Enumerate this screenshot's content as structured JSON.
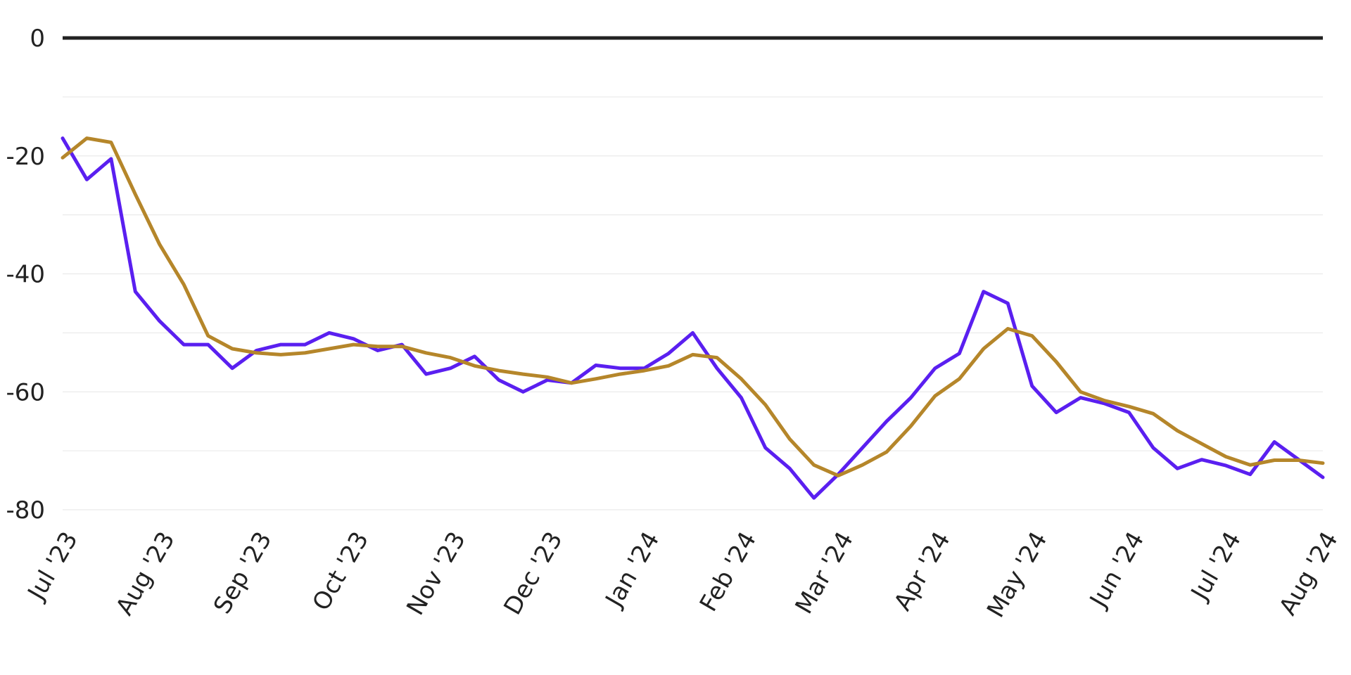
{
  "chart_data": {
    "type": "line",
    "x": [
      0,
      0.25,
      0.5,
      0.75,
      1,
      1.25,
      1.5,
      1.75,
      2,
      2.25,
      2.5,
      2.75,
      3,
      3.25,
      3.5,
      3.75,
      4,
      4.25,
      4.5,
      4.75,
      5,
      5.25,
      5.5,
      5.75,
      6,
      6.25,
      6.5,
      6.75,
      7,
      7.25,
      7.5,
      7.75,
      8,
      8.25,
      8.5,
      8.75,
      9,
      9.25,
      9.5,
      9.75,
      10,
      10.25,
      10.5,
      10.75,
      11,
      11.25,
      11.5,
      11.75,
      12,
      12.25,
      12.5,
      12.75,
      13
    ],
    "series": [
      {
        "color": "#5a1ff0",
        "values": [
          -17,
          -24,
          -20.5,
          -43,
          -48,
          -52,
          -52,
          -56,
          -53,
          -52,
          -52,
          -50,
          -51,
          -53,
          -52,
          -57,
          -56,
          -54,
          -58,
          -60,
          -58,
          -58.5,
          -55.5,
          -56,
          -56,
          -53.5,
          -50,
          -56,
          -61,
          -69.5,
          -73,
          -78,
          -74,
          -69.5,
          -65,
          -61,
          -56,
          -53.5,
          -43,
          -45,
          -59,
          -63.5,
          -61,
          -62,
          -63.5,
          -69.5,
          -73,
          -71.5,
          -72.5,
          -74,
          -68.5,
          -71.5,
          -74.5
        ]
      },
      {
        "color": "#b5862a",
        "values": [
          -20.3,
          -17,
          -17.7,
          -26.5,
          -35,
          -41.8,
          -50.5,
          -52.7,
          -53.4,
          -53.7,
          -53.4,
          -52.7,
          -52,
          -52.3,
          -52.3,
          -53.4,
          -54.2,
          -55.6,
          -56.4,
          -57,
          -57.5,
          -58.5,
          -57.8,
          -57,
          -56.4,
          -55.6,
          -53.7,
          -54.2,
          -57.8,
          -62.2,
          -68,
          -72.4,
          -74.2,
          -72.4,
          -70.2,
          -65.8,
          -60.7,
          -57.8,
          -52.7,
          -49.3,
          -50.5,
          -54.9,
          -60,
          -61.5,
          -62.5,
          -63.7,
          -66.6,
          -68.8,
          -71,
          -72.4,
          -71.6,
          -71.6,
          -72.1
        ]
      }
    ],
    "xlim": [
      0,
      13
    ],
    "xticks": [
      {
        "value": 0,
        "label": "Jul '23"
      },
      {
        "value": 1,
        "label": "Aug '23"
      },
      {
        "value": 2,
        "label": "Sep '23"
      },
      {
        "value": 3,
        "label": "Oct '23"
      },
      {
        "value": 4,
        "label": "Nov '23"
      },
      {
        "value": 5,
        "label": "Dec '23"
      },
      {
        "value": 6,
        "label": "Jan '24"
      },
      {
        "value": 7,
        "label": "Feb '24"
      },
      {
        "value": 8,
        "label": "Mar '24"
      },
      {
        "value": 9,
        "label": "Apr '24"
      },
      {
        "value": 10,
        "label": "May '24"
      },
      {
        "value": 11,
        "label": "Jun '24"
      },
      {
        "value": 12,
        "label": "Jul '24"
      },
      {
        "value": 13,
        "label": "Aug '24"
      }
    ],
    "ylim": [
      -80,
      0
    ],
    "yticks": [
      0,
      -20,
      -40,
      -60,
      -80
    ],
    "minor_gridlines": [
      -10,
      -30,
      -50,
      -70
    ],
    "grid": true
  }
}
